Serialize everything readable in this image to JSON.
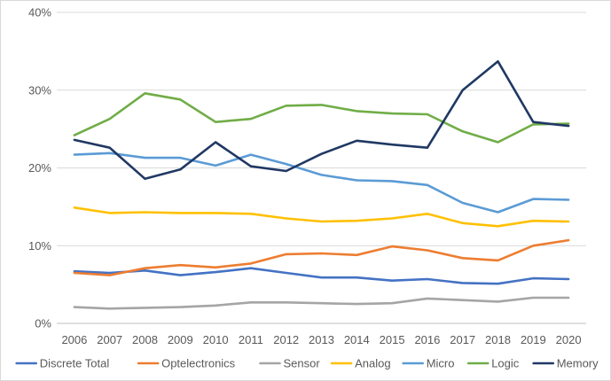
{
  "chart_data": {
    "type": "line",
    "title": "",
    "xlabel": "",
    "ylabel": "",
    "ylim": [
      0,
      40
    ],
    "y_ticks": [
      "0%",
      "10%",
      "20%",
      "30%",
      "40%"
    ],
    "y_tick_values": [
      0,
      10,
      20,
      30,
      40
    ],
    "grid": "horizontal",
    "legend_position": "bottom",
    "categories": [
      "2006",
      "2007",
      "2008",
      "2009",
      "2010",
      "2011",
      "2012",
      "2013",
      "2014",
      "2015",
      "2016",
      "2017",
      "2018",
      "2019",
      "2020"
    ],
    "series": [
      {
        "name": "Discrete Total",
        "color": "#4472C4",
        "values": [
          6.7,
          6.5,
          6.8,
          6.2,
          6.6,
          7.1,
          6.5,
          5.9,
          5.9,
          5.5,
          5.7,
          5.2,
          5.1,
          5.8,
          5.7
        ]
      },
      {
        "name": "Optelectronics",
        "color": "#ED7D31",
        "values": [
          6.5,
          6.2,
          7.1,
          7.5,
          7.2,
          7.7,
          8.9,
          9.0,
          8.8,
          9.9,
          9.4,
          8.4,
          8.1,
          10.0,
          10.7
        ]
      },
      {
        "name": "Sensor",
        "color": "#A5A5A5",
        "values": [
          2.1,
          1.9,
          2.0,
          2.1,
          2.3,
          2.7,
          2.7,
          2.6,
          2.5,
          2.6,
          3.2,
          3.0,
          2.8,
          3.3,
          3.3
        ]
      },
      {
        "name": "Analog",
        "color": "#FFC000",
        "values": [
          14.9,
          14.2,
          14.3,
          14.2,
          14.2,
          14.1,
          13.5,
          13.1,
          13.2,
          13.5,
          14.1,
          12.9,
          12.5,
          13.2,
          13.1
        ]
      },
      {
        "name": "Micro",
        "color": "#5B9BD5",
        "values": [
          21.7,
          21.9,
          21.3,
          21.3,
          20.3,
          21.7,
          20.5,
          19.1,
          18.4,
          18.3,
          17.8,
          15.5,
          14.3,
          16.0,
          15.9
        ]
      },
      {
        "name": "Logic",
        "color": "#70AD47",
        "values": [
          24.2,
          26.3,
          29.6,
          28.8,
          25.9,
          26.3,
          28.0,
          28.1,
          27.3,
          27.0,
          26.9,
          24.7,
          23.3,
          25.6,
          25.7
        ]
      },
      {
        "name": "Memory",
        "color": "#203864",
        "values": [
          23.6,
          22.6,
          18.6,
          19.8,
          23.3,
          20.2,
          19.6,
          21.8,
          23.5,
          23.0,
          22.6,
          30.0,
          33.7,
          25.9,
          25.4
        ]
      }
    ]
  }
}
